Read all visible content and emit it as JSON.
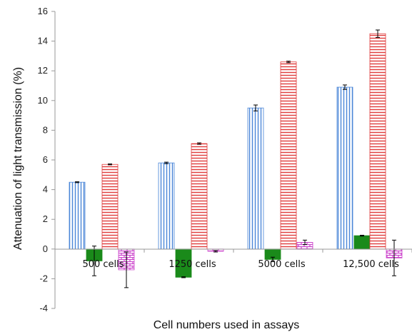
{
  "chart_data": {
    "type": "bar",
    "xlabel": "Cell numbers used in assays",
    "ylabel": "Attenuation of light transmission (%)",
    "ylim": [
      -4,
      16
    ],
    "yticks": [
      "-4",
      "-2",
      "0",
      "2",
      "4",
      "6",
      "8",
      "10",
      "12",
      "14",
      "16"
    ],
    "grid": false,
    "legend": "none",
    "categories": [
      "500 cells",
      "1250 cells",
      "5000 cells",
      "12,500 cells"
    ],
    "series": [
      {
        "values": [
          4.5,
          5.8,
          9.5,
          10.9
        ],
        "errors": [
          0.03,
          0.05,
          0.2,
          0.15
        ],
        "color": "#4a86d8",
        "pattern": "vertical-lines"
      },
      {
        "values": [
          -0.8,
          -1.9,
          -0.7,
          0.9
        ],
        "errors": [
          1.0,
          0.03,
          0.15,
          0.03
        ],
        "color": "#1a8a1a",
        "pattern": "solid"
      },
      {
        "values": [
          5.7,
          7.1,
          12.6,
          14.5
        ],
        "errors": [
          0.03,
          0.05,
          0.05,
          0.25
        ],
        "color": "#e03a3a",
        "pattern": "horizontal-lines"
      },
      {
        "values": [
          -1.4,
          -0.15,
          0.45,
          -0.6
        ],
        "errors": [
          1.2,
          0.05,
          0.15,
          1.2
        ],
        "color": "#cc44cc",
        "pattern": "bricks"
      }
    ]
  }
}
